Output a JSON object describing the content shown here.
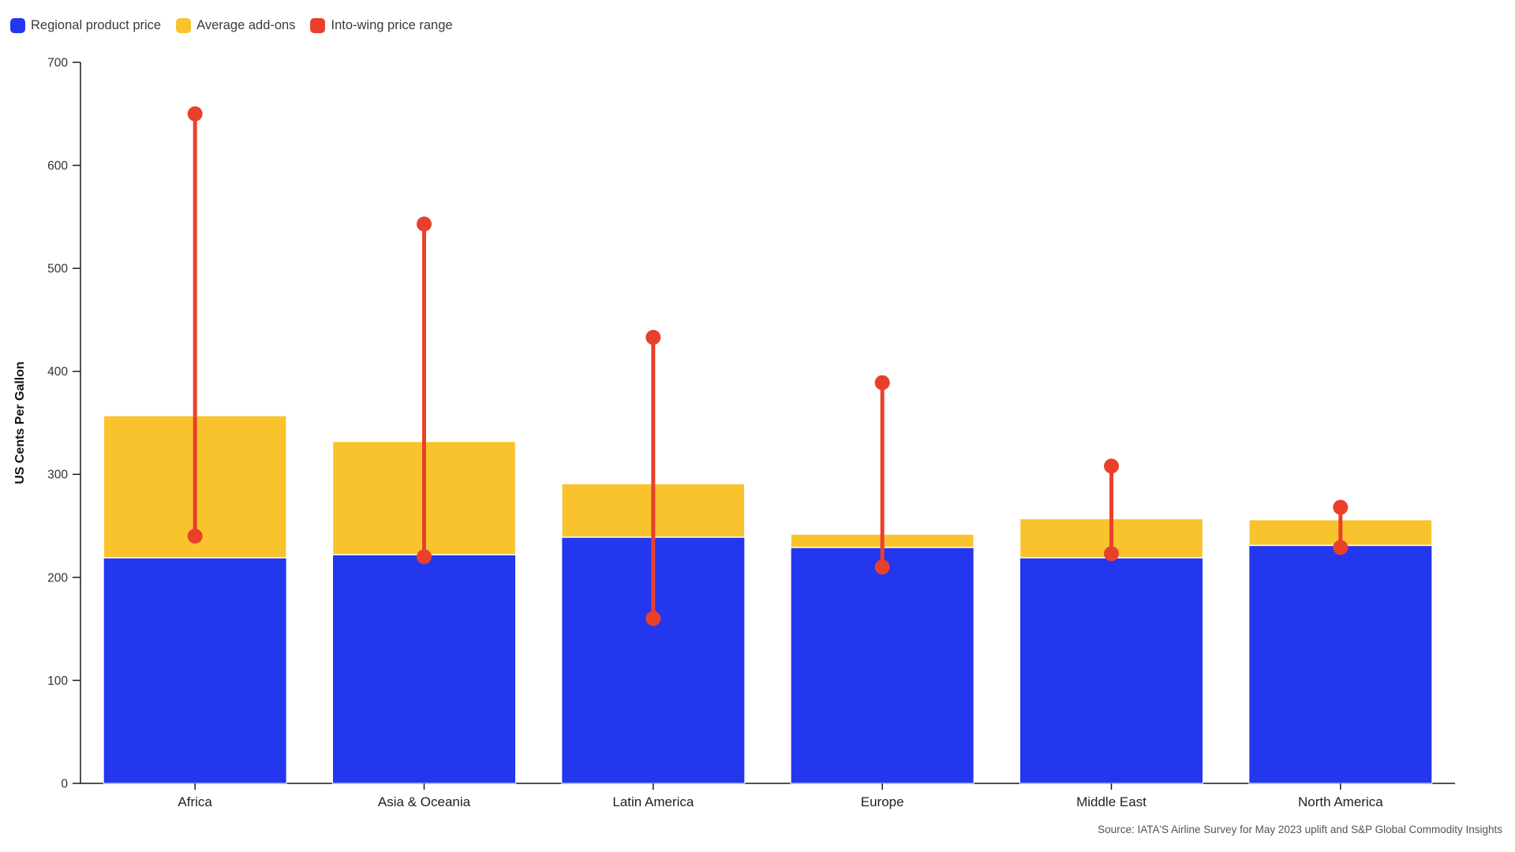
{
  "legend": {
    "items": [
      {
        "label": "Regional product price",
        "color": "#2337ee"
      },
      {
        "label": "Average add-ons",
        "color": "#f9c32e"
      },
      {
        "label": "Into-wing price range",
        "color": "#e9402c"
      }
    ]
  },
  "source": "Source: IATA'S Airline Survey for May 2023 uplift and S&P Global Commodity Insights",
  "colors": {
    "regional_product_price": "#2337ee",
    "average_add_ons": "#f9c32e",
    "into_wing_range": "#e9402c",
    "axis_line": "#1a1a1a",
    "tick_label": "#333333",
    "category_label": "#222222",
    "bar_separator": "#ffffff"
  },
  "chart_data": {
    "type": "bar",
    "stacked": true,
    "title": "",
    "xlabel": "",
    "ylabel": "US Cents Per Gallon",
    "ylim": [
      0,
      700
    ],
    "yticks": [
      0,
      100,
      200,
      300,
      400,
      500,
      600,
      700
    ],
    "grid": false,
    "legend_position": "top-left",
    "categories": [
      "Africa",
      "Asia & Oceania",
      "Latin America",
      "Europe",
      "Middle East",
      "North America"
    ],
    "series": [
      {
        "name": "Regional product price",
        "type": "bar",
        "color": "#2337ee",
        "values": [
          219,
          222,
          239,
          229,
          219,
          231
        ]
      },
      {
        "name": "Average add-ons",
        "type": "bar",
        "color": "#f9c32e",
        "values": [
          138,
          110,
          52,
          13,
          38,
          25
        ]
      },
      {
        "name": "Into-wing price range",
        "type": "range",
        "color": "#e9402c",
        "low": [
          240,
          220,
          160,
          210,
          223,
          229
        ],
        "high": [
          650,
          543,
          433,
          389,
          308,
          268
        ]
      }
    ]
  }
}
